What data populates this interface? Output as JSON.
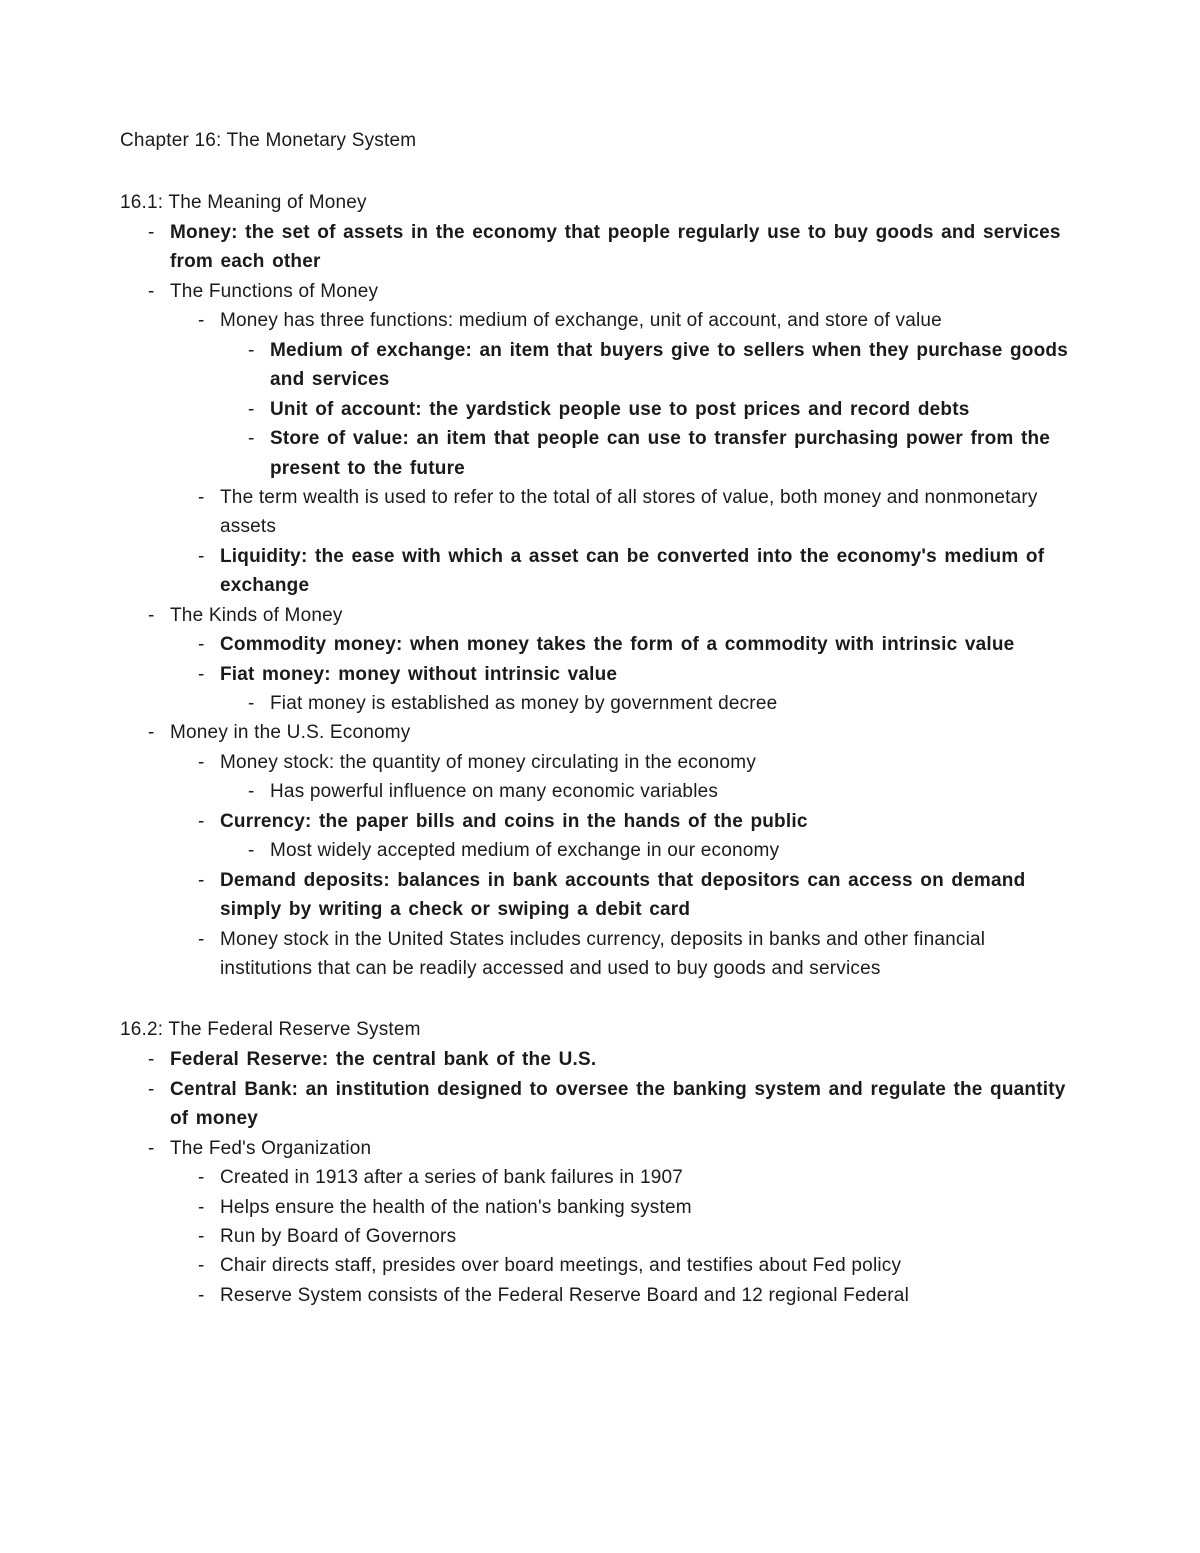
{
  "title": "Chapter 16: The Monetary System",
  "s1": {
    "heading": "16.1: The Meaning of Money",
    "i1": "Money: the set of assets in the economy that people regularly use to buy goods and services from each other",
    "i2": "The Functions of Money",
    "i2a": "Money has three functions: medium of exchange, unit of account, and store of value",
    "i2a1": "Medium of exchange: an item that buyers give to sellers when they purchase goods and services",
    "i2a2": " Unit of account: the yardstick people use to post prices and record debts",
    "i2a3": "Store of value: an item that people can use to transfer purchasing power from the present to the future",
    "i2b": "The term wealth is used to refer to the total of all stores of value, both money and nonmonetary assets",
    "i2c": "Liquidity: the ease with which a asset can be converted into the economy's medium of exchange",
    "i3": "The Kinds of Money",
    "i3a": "Commodity money: when money takes the form of a commodity with intrinsic value",
    "i3b": "Fiat money: money without intrinsic value",
    "i3b1": "Fiat money is established as money by government decree",
    "i4": "Money in the U.S. Economy",
    "i4a": "Money stock: the quantity of money circulating in the economy",
    "i4a1": "Has powerful influence on many economic variables",
    "i4b": "Currency: the paper bills and coins in the hands of the public",
    "i4b1": "Most widely accepted medium of exchange in our economy",
    "i4c": "Demand deposits: balances in bank accounts that depositors can access on demand simply by writing a check or swiping a debit card",
    "i4d": "Money stock in the United States includes currency, deposits in banks and other financial institutions that can be readily accessed and used to buy goods and services"
  },
  "s2": {
    "heading": "16.2: The Federal Reserve System",
    "i1": "Federal Reserve: the central bank of the U.S.",
    "i2": "Central Bank: an institution designed to oversee the banking system and regulate the quantity of money",
    "i3": "The Fed's Organization",
    "i3a": "Created in 1913 after a series of bank failures in 1907",
    "i3b": "Helps ensure the health of the nation's banking system",
    "i3c": "Run by Board of Governors",
    "i3d": "Chair directs staff, presides over board meetings, and testifies about Fed policy",
    "i3e": "Reserve System consists of the Federal Reserve Board and 12 regional Federal"
  }
}
